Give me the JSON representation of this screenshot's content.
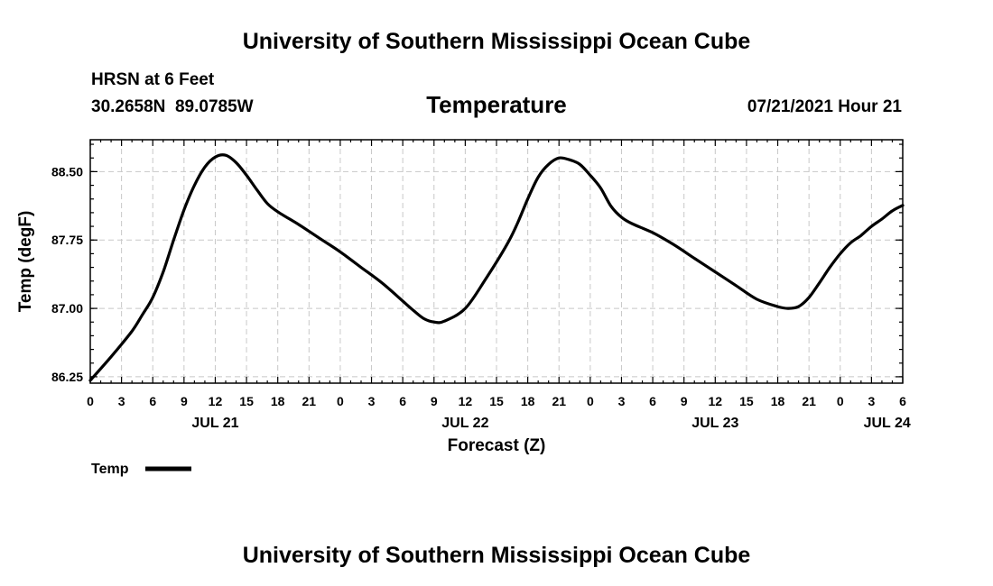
{
  "header": {
    "top_title": "University of Southern Mississippi Ocean Cube",
    "station": "HRSN at 6 Feet",
    "coords": "30.2658N  89.0785W",
    "datetime": "07/21/2021 Hour 21"
  },
  "footer": {
    "bottom_title": "University of Southern Mississippi Ocean Cube"
  },
  "colors": {
    "line": "#000000",
    "grid": "#c8c8c8"
  },
  "chart_data": {
    "type": "line",
    "title": "Temperature",
    "xlabel": "Forecast (Z)",
    "ylabel": "Temp (degF)",
    "xlim": [
      0,
      78
    ],
    "ylim": [
      86.18,
      88.85
    ],
    "yticks": [
      86.25,
      87.0,
      87.75,
      88.5
    ],
    "ytick_labels": [
      "86.25",
      "87.00",
      "87.75",
      "88.50"
    ],
    "xtick_labels": [
      "0",
      "3",
      "6",
      "9",
      "12",
      "15",
      "18",
      "21",
      "0",
      "3",
      "6",
      "9",
      "12",
      "15",
      "18",
      "21",
      "0",
      "3",
      "6",
      "9",
      "12",
      "15",
      "18",
      "21",
      "0",
      "3",
      "6"
    ],
    "date_labels": [
      {
        "x": 12,
        "label": "JUL 21"
      },
      {
        "x": 36,
        "label": "JUL 22"
      },
      {
        "x": 60,
        "label": "JUL 23"
      },
      {
        "x": 76.5,
        "label": "JUL 24"
      }
    ],
    "legend": [
      {
        "name": "Temp",
        "placement": "bottom-left"
      }
    ],
    "grid": true,
    "series": [
      {
        "name": "Temp",
        "x": [
          0,
          2,
          4,
          5,
          6,
          7,
          8,
          9,
          10,
          11,
          12,
          13,
          14,
          15,
          16,
          17,
          18,
          20,
          22,
          24,
          26,
          28,
          30,
          31,
          32,
          33,
          34,
          36,
          38,
          40,
          41,
          42,
          43,
          44,
          45,
          46,
          47,
          48,
          49,
          50,
          51,
          52,
          54,
          56,
          58,
          60,
          62,
          64,
          66,
          67,
          68,
          69,
          70,
          71,
          72,
          73,
          74,
          75,
          76,
          77,
          78
        ],
        "y": [
          86.21,
          86.47,
          86.75,
          86.93,
          87.12,
          87.4,
          87.75,
          88.08,
          88.35,
          88.55,
          88.66,
          88.68,
          88.6,
          88.46,
          88.3,
          88.15,
          88.06,
          87.92,
          87.77,
          87.62,
          87.45,
          87.28,
          87.08,
          86.98,
          86.89,
          86.85,
          86.86,
          87.0,
          87.33,
          87.7,
          87.93,
          88.2,
          88.44,
          88.58,
          88.65,
          88.63,
          88.58,
          88.46,
          88.32,
          88.12,
          88.0,
          87.93,
          87.83,
          87.7,
          87.55,
          87.4,
          87.25,
          87.1,
          87.02,
          87.0,
          87.02,
          87.12,
          87.28,
          87.45,
          87.6,
          87.72,
          87.8,
          87.9,
          87.98,
          88.07,
          88.13
        ]
      }
    ]
  }
}
